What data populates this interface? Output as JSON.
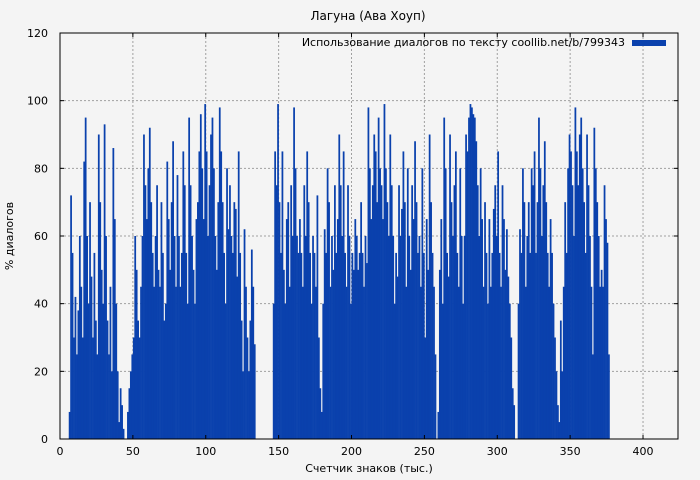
{
  "chart_data": {
    "type": "bar",
    "title": "Лагуна (Ава Хоуп)",
    "xlabel": "Счетчик знаков (тыс.)",
    "ylabel": "% диалогов",
    "legend": {
      "label": "Использование диалогов по тексту coollib.net/b/799343",
      "position": "top-right"
    },
    "xlim": [
      0,
      424
    ],
    "ylim": [
      0,
      120
    ],
    "xticks": [
      0,
      50,
      100,
      150,
      200,
      250,
      300,
      350,
      400
    ],
    "yticks": [
      0,
      20,
      40,
      60,
      80,
      100,
      120
    ],
    "grid": true,
    "bar_color": "#0a41ad",
    "x_start": 6,
    "step": 1,
    "values": [
      8,
      72,
      55,
      30,
      42,
      25,
      38,
      60,
      45,
      30,
      82,
      95,
      60,
      40,
      70,
      48,
      30,
      55,
      35,
      25,
      90,
      70,
      50,
      40,
      93,
      60,
      35,
      25,
      45,
      20,
      86,
      65,
      40,
      20,
      5,
      15,
      10,
      3,
      0,
      0,
      8,
      15,
      20,
      25,
      30,
      60,
      50,
      35,
      30,
      45,
      60,
      90,
      75,
      65,
      80,
      92,
      70,
      55,
      45,
      60,
      75,
      50,
      45,
      70,
      55,
      35,
      40,
      82,
      65,
      50,
      70,
      88,
      60,
      45,
      78,
      60,
      45,
      55,
      85,
      75,
      55,
      40,
      95,
      75,
      60,
      50,
      40,
      65,
      70,
      85,
      96,
      80,
      65,
      99,
      85,
      60,
      75,
      90,
      95,
      80,
      60,
      50,
      70,
      98,
      85,
      70,
      55,
      40,
      80,
      62,
      75,
      60,
      55,
      70,
      68,
      48,
      85,
      55,
      35,
      20,
      62,
      45,
      30,
      20,
      35,
      56,
      45,
      28,
      0,
      0,
      0,
      0,
      0,
      0,
      0,
      0,
      0,
      0,
      0,
      0,
      40,
      85,
      75,
      99,
      70,
      55,
      85,
      50,
      40,
      65,
      70,
      45,
      75,
      60,
      98,
      80,
      60,
      55,
      65,
      55,
      45,
      75,
      60,
      85,
      70,
      55,
      40,
      60,
      55,
      45,
      72,
      30,
      15,
      8,
      40,
      62,
      55,
      80,
      70,
      45,
      60,
      50,
      75,
      55,
      65,
      90,
      75,
      60,
      85,
      55,
      45,
      75,
      60,
      40,
      55,
      50,
      65,
      60,
      50,
      55,
      70,
      55,
      45,
      60,
      52,
      98,
      80,
      65,
      75,
      90,
      85,
      70,
      95,
      80,
      75,
      65,
      99,
      80,
      70,
      60,
      90,
      75,
      60,
      40,
      55,
      48,
      75,
      60,
      68,
      85,
      70,
      45,
      80,
      60,
      50,
      75,
      65,
      88,
      70,
      55,
      60,
      45,
      80,
      55,
      30,
      65,
      50,
      90,
      70,
      55,
      45,
      25,
      0,
      8,
      50,
      65,
      40,
      95,
      80,
      55,
      48,
      90,
      70,
      60,
      75,
      85,
      55,
      45,
      80,
      60,
      40,
      60,
      90,
      85,
      95,
      99,
      98,
      96,
      95,
      88,
      75,
      60,
      80,
      65,
      45,
      70,
      55,
      40,
      65,
      45,
      55,
      68,
      75,
      60,
      85,
      55,
      45,
      75,
      65,
      50,
      62,
      48,
      40,
      30,
      15,
      10,
      0,
      0,
      40,
      62,
      55,
      80,
      70,
      45,
      60,
      70,
      55,
      80,
      75,
      85,
      55,
      70,
      95,
      80,
      60,
      75,
      88,
      70,
      55,
      45,
      65,
      55,
      40,
      30,
      20,
      10,
      5,
      35,
      20,
      45,
      70,
      55,
      80,
      90,
      85,
      75,
      60,
      98,
      85,
      75,
      90,
      95,
      80,
      70,
      55,
      90,
      75,
      60,
      45,
      25,
      92,
      80,
      70,
      60,
      45,
      50,
      45,
      75,
      65,
      58,
      25
    ]
  }
}
